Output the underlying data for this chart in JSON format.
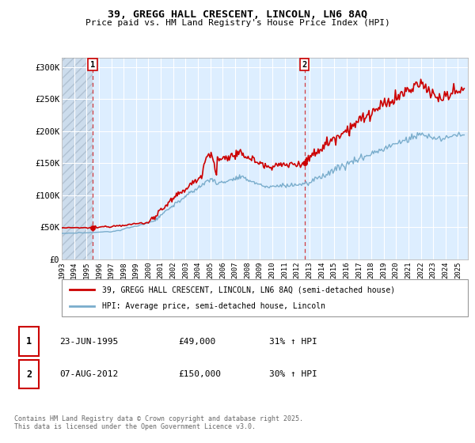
{
  "title": "39, GREGG HALL CRESCENT, LINCOLN, LN6 8AQ",
  "subtitle": "Price paid vs. HM Land Registry's House Price Index (HPI)",
  "ylabel_ticks": [
    "£0",
    "£50K",
    "£100K",
    "£150K",
    "£200K",
    "£250K",
    "£300K"
  ],
  "ytick_values": [
    0,
    50000,
    100000,
    150000,
    200000,
    250000,
    300000
  ],
  "ylim": [
    0,
    315000
  ],
  "xlim_start": 1993.0,
  "xlim_end": 2025.8,
  "xtick_years": [
    1993,
    1994,
    1995,
    1996,
    1997,
    1998,
    1999,
    2000,
    2001,
    2002,
    2003,
    2004,
    2005,
    2006,
    2007,
    2008,
    2009,
    2010,
    2011,
    2012,
    2013,
    2014,
    2015,
    2016,
    2017,
    2018,
    2019,
    2020,
    2021,
    2022,
    2023,
    2024,
    2025
  ],
  "red_line_color": "#cc0000",
  "blue_line_color": "#7aadcc",
  "plot_bg_color": "#ddeeff",
  "grid_color": "#ffffff",
  "point1_x": 1995.48,
  "point1_y": 49000,
  "point2_x": 2012.6,
  "point2_y": 150000,
  "marker_color": "#cc0000",
  "legend_label_red": "39, GREGG HALL CRESCENT, LINCOLN, LN6 8AQ (semi-detached house)",
  "legend_label_blue": "HPI: Average price, semi-detached house, Lincoln",
  "annotation1_label": "1",
  "annotation2_label": "2",
  "note1_num": "1",
  "note1_date": "23-JUN-1995",
  "note1_price": "£49,000",
  "note1_hpi": "31% ↑ HPI",
  "note2_num": "2",
  "note2_date": "07-AUG-2012",
  "note2_price": "£150,000",
  "note2_hpi": "30% ↑ HPI",
  "copyright": "Contains HM Land Registry data © Crown copyright and database right 2025.\nThis data is licensed under the Open Government Licence v3.0."
}
